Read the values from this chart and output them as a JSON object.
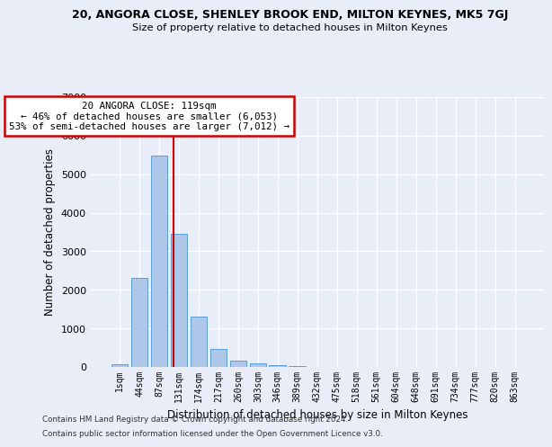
{
  "title_line1": "20, ANGORA CLOSE, SHENLEY BROOK END, MILTON KEYNES, MK5 7GJ",
  "title_line2": "Size of property relative to detached houses in Milton Keynes",
  "xlabel": "Distribution of detached houses by size in Milton Keynes",
  "ylabel": "Number of detached properties",
  "footer_line1": "Contains HM Land Registry data © Crown copyright and database right 2024.",
  "footer_line2": "Contains public sector information licensed under the Open Government Licence v3.0.",
  "categories": [
    "1sqm",
    "44sqm",
    "87sqm",
    "131sqm",
    "174sqm",
    "217sqm",
    "260sqm",
    "303sqm",
    "346sqm",
    "389sqm",
    "432sqm",
    "475sqm",
    "518sqm",
    "561sqm",
    "604sqm",
    "648sqm",
    "691sqm",
    "734sqm",
    "777sqm",
    "820sqm",
    "863sqm"
  ],
  "values": [
    80,
    2300,
    5480,
    3450,
    1310,
    470,
    155,
    95,
    55,
    30,
    0,
    0,
    0,
    0,
    0,
    0,
    0,
    0,
    0,
    0,
    0
  ],
  "bar_color": "#aec6e8",
  "bar_edge_color": "#5a9fd4",
  "background_color": "#e8edf8",
  "grid_color": "#ffffff",
  "vline_color": "#cc0000",
  "vline_position": 2.75,
  "annotation_text": "20 ANGORA CLOSE: 119sqm\n← 46% of detached houses are smaller (6,053)\n53% of semi-detached houses are larger (7,012) →",
  "annotation_box_color": "#ffffff",
  "annotation_box_edge_color": "#cc0000",
  "ylim": [
    0,
    7000
  ],
  "yticks": [
    0,
    1000,
    2000,
    3000,
    4000,
    5000,
    6000,
    7000
  ]
}
